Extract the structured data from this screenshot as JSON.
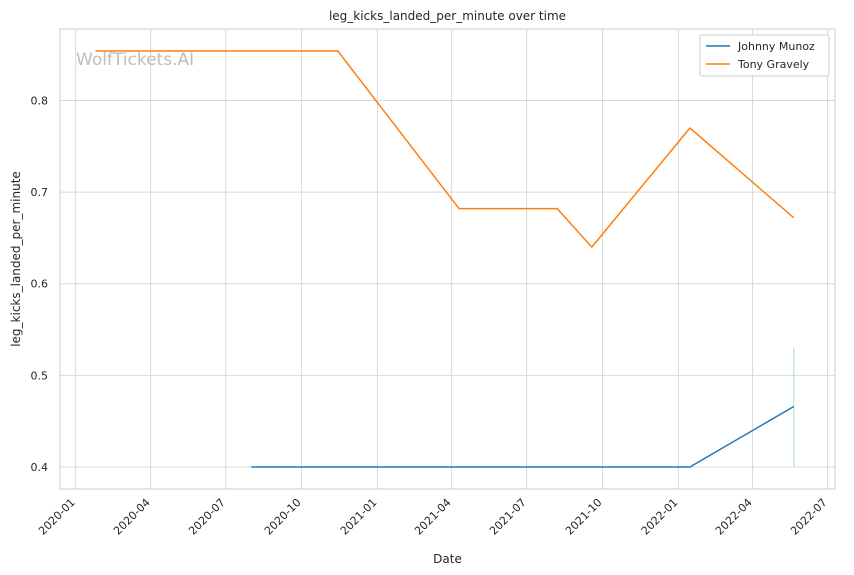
{
  "chart_data": {
    "type": "line",
    "title": "leg_kicks_landed_per_minute over time",
    "xlabel": "Date",
    "ylabel": "leg_kicks_landed_per_minute",
    "watermark": "WolfTickets.AI",
    "xlim": [
      "2019-12-13",
      "2022-07-10"
    ],
    "ylim": [
      0.376,
      0.878
    ],
    "x_ticks": [
      "2020-01",
      "2020-04",
      "2020-07",
      "2020-10",
      "2021-01",
      "2021-04",
      "2021-07",
      "2021-10",
      "2022-01",
      "2022-04",
      "2022-07"
    ],
    "y_ticks": [
      "0.4",
      "0.5",
      "0.6",
      "0.7",
      "0.8"
    ],
    "grid": true,
    "legend_position": "top-right",
    "series": [
      {
        "name": "Johnny Munoz",
        "color": "#1f77b4",
        "points": [
          {
            "x": "2020-08-01",
            "y": 0.4
          },
          {
            "x": "2022-01-15",
            "y": 0.4
          },
          {
            "x": "2022-05-21",
            "y": 0.466
          }
        ]
      },
      {
        "name": "Tony Gravely",
        "color": "#ff7f0e",
        "points": [
          {
            "x": "2020-01-25",
            "y": 0.854
          },
          {
            "x": "2020-11-14",
            "y": 0.854
          },
          {
            "x": "2021-04-10",
            "y": 0.682
          },
          {
            "x": "2021-08-07",
            "y": 0.682
          },
          {
            "x": "2021-09-18",
            "y": 0.64
          },
          {
            "x": "2022-01-15",
            "y": 0.77
          },
          {
            "x": "2022-05-21",
            "y": 0.672
          }
        ]
      }
    ],
    "marker_line": {
      "x": "2022-05-21",
      "y_range": [
        0.4,
        0.53
      ],
      "color": "#a8d8e0"
    }
  }
}
